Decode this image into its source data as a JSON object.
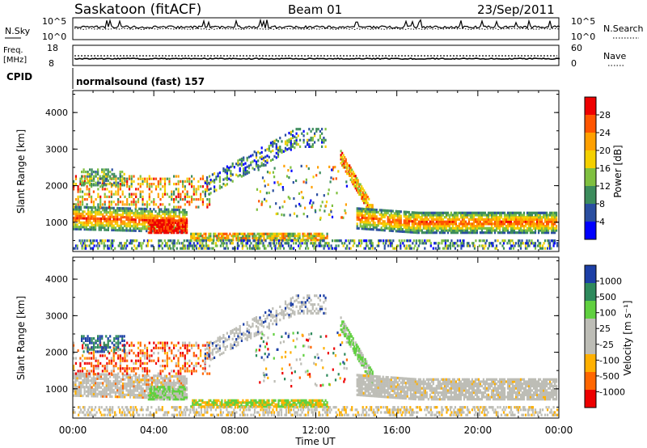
{
  "header": {
    "station": "Saskatoon (fitACF)",
    "beam": "Beam 01",
    "date": "23/Sep/2011"
  },
  "panels": {
    "nsky": {
      "left_label": "N.Sky",
      "top_tick": "10^5",
      "bottom_tick": "10^0",
      "right_label": "N.Search"
    },
    "freq": {
      "left_label_top": "Freq.",
      "left_label_unit": "[MHz]",
      "top_tick": "18",
      "bottom_tick": "8",
      "right_top_tick": "60",
      "right_bottom_tick": "0",
      "right_label": "Nave"
    },
    "cpid": {
      "label": "CPID",
      "text": "normalsound (fast) 157"
    }
  },
  "colors": {
    "power": [
      "#0000ff",
      "#2a4ea0",
      "#3c8c5c",
      "#7fc040",
      "#f4d000",
      "#ffa000",
      "#ff5500",
      "#ee0000"
    ],
    "velocity": [
      "#ee0000",
      "#ff6600",
      "#ffb000",
      "#bdbdb6",
      "#bdbdb6",
      "#60d040",
      "#2e8a5c",
      "#1c3fa6"
    ]
  },
  "chart_data": [
    {
      "type": "heatmap",
      "name": "power",
      "ylabel": "Slant Range [km]",
      "ylim": [
        200,
        4600
      ],
      "yticks": [
        "1000",
        "2000",
        "3000",
        "4000"
      ],
      "xlim": [
        0,
        24
      ],
      "colorbar": {
        "label": "Power [dB]",
        "ticks": [
          "4",
          "8",
          "12",
          "16",
          "20",
          "24",
          "28"
        ]
      }
    },
    {
      "type": "heatmap",
      "name": "velocity",
      "ylabel": "Slant Range [km]",
      "ylim": [
        200,
        4600
      ],
      "yticks": [
        "1000",
        "2000",
        "3000",
        "4000"
      ],
      "xlim": [
        0,
        24
      ],
      "xlabel": "Time UT",
      "xticks": [
        "00:00",
        "04:00",
        "08:00",
        "12:00",
        "16:00",
        "20:00",
        "00:00"
      ],
      "colorbar": {
        "label": "Velocity [m s⁻¹]",
        "ticks": [
          "1000",
          "500",
          "100",
          "25",
          "-25",
          "-100",
          "-500",
          "-1000"
        ]
      }
    }
  ]
}
